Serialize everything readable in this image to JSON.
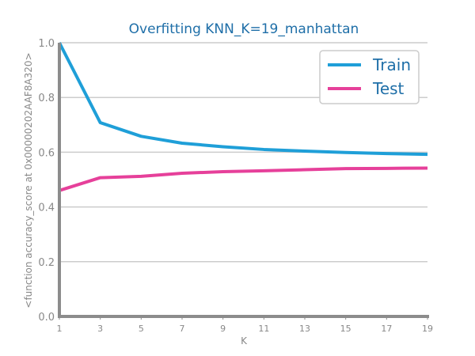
{
  "chart_data": {
    "type": "line",
    "title": "Overfitting KNN_K=19_manhattan",
    "xlabel": "K",
    "ylabel": "<function accuracy_score at 0x00000202AAF8A320>",
    "x": [
      1,
      3,
      5,
      7,
      9,
      11,
      13,
      15,
      17,
      19
    ],
    "xticks": [
      "1",
      "3",
      "5",
      "7",
      "9",
      "11",
      "13",
      "15",
      "17",
      "19"
    ],
    "yticks": [
      "0.0",
      "0.2",
      "0.4",
      "0.6",
      "0.8",
      "1.0"
    ],
    "xlim": [
      1,
      19
    ],
    "ylim": [
      0,
      1
    ],
    "grid": true,
    "legend_position": "top-right",
    "series": [
      {
        "name": "Train",
        "color": "#1f9fd8",
        "values": [
          1.0,
          0.708,
          0.658,
          0.633,
          0.62,
          0.61,
          0.604,
          0.599,
          0.595,
          0.592
        ]
      },
      {
        "name": "Test",
        "color": "#e6409a",
        "values": [
          0.46,
          0.507,
          0.512,
          0.523,
          0.529,
          0.532,
          0.536,
          0.54,
          0.541,
          0.542
        ]
      }
    ]
  }
}
